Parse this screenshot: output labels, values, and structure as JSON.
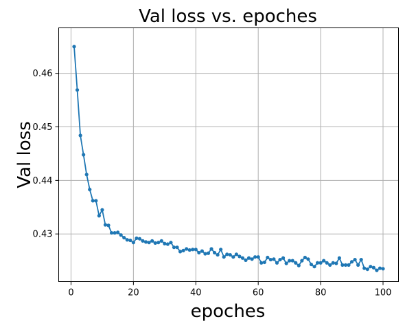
{
  "chart_data": {
    "type": "line",
    "title": "Val loss vs. epoches",
    "xlabel": "epoches",
    "ylabel": "Val loss",
    "xlim": [
      -3.95,
      104.95
    ],
    "ylim": [
      0.4211,
      0.4685
    ],
    "xticks": [
      0,
      20,
      40,
      60,
      80,
      100
    ],
    "yticks": [
      0.43,
      0.44,
      0.45,
      0.46
    ],
    "xtick_labels": [
      "0",
      "20",
      "40",
      "60",
      "80",
      "100"
    ],
    "ytick_labels": [
      "0.43",
      "0.44",
      "0.45",
      "0.46"
    ],
    "grid": true,
    "color": "#1f77b4",
    "series": [
      {
        "x": [
          1,
          2,
          3,
          4,
          5,
          6,
          7,
          8,
          9,
          10,
          11,
          12,
          13,
          14,
          15,
          16,
          17,
          18,
          19,
          20,
          21,
          22,
          23,
          24,
          25,
          26,
          27,
          28,
          29,
          30,
          31,
          32,
          33,
          34,
          35,
          36,
          37,
          38,
          39,
          40,
          41,
          42,
          43,
          44,
          45,
          46,
          47,
          48,
          49,
          50,
          51,
          52,
          53,
          54,
          55,
          56,
          57,
          58,
          59,
          60,
          61,
          62,
          63,
          64,
          65,
          66,
          67,
          68,
          69,
          70,
          71,
          72,
          73,
          74,
          75,
          76,
          77,
          78,
          79,
          80,
          81,
          82,
          83,
          84,
          85,
          86,
          87,
          88,
          89,
          90,
          91,
          92,
          93,
          94,
          95,
          96,
          97,
          98,
          99,
          100
        ],
        "y": [
          0.465,
          0.4569,
          0.4484,
          0.4448,
          0.4411,
          0.4383,
          0.4362,
          0.4362,
          0.4334,
          0.4345,
          0.4317,
          0.4316,
          0.4302,
          0.4302,
          0.4303,
          0.4298,
          0.4293,
          0.4289,
          0.4288,
          0.4284,
          0.4292,
          0.4291,
          0.4287,
          0.4285,
          0.4284,
          0.4287,
          0.4283,
          0.4284,
          0.4287,
          0.4282,
          0.4281,
          0.4284,
          0.4275,
          0.4275,
          0.4267,
          0.4269,
          0.4272,
          0.427,
          0.4271,
          0.4271,
          0.4265,
          0.4268,
          0.4263,
          0.4264,
          0.4272,
          0.4265,
          0.4261,
          0.4271,
          0.4257,
          0.4262,
          0.4261,
          0.4257,
          0.4262,
          0.4258,
          0.4255,
          0.4251,
          0.4255,
          0.4253,
          0.4257,
          0.4257,
          0.4246,
          0.4247,
          0.4256,
          0.4252,
          0.4253,
          0.4246,
          0.4252,
          0.4255,
          0.4245,
          0.425,
          0.425,
          0.4246,
          0.4241,
          0.425,
          0.4256,
          0.4253,
          0.4243,
          0.4239,
          0.4246,
          0.4246,
          0.425,
          0.4246,
          0.4242,
          0.4246,
          0.4245,
          0.4255,
          0.4242,
          0.4242,
          0.4242,
          0.4248,
          0.4252,
          0.4242,
          0.4252,
          0.4236,
          0.4234,
          0.4239,
          0.4237,
          0.4232,
          0.4236,
          0.4235
        ]
      }
    ]
  }
}
